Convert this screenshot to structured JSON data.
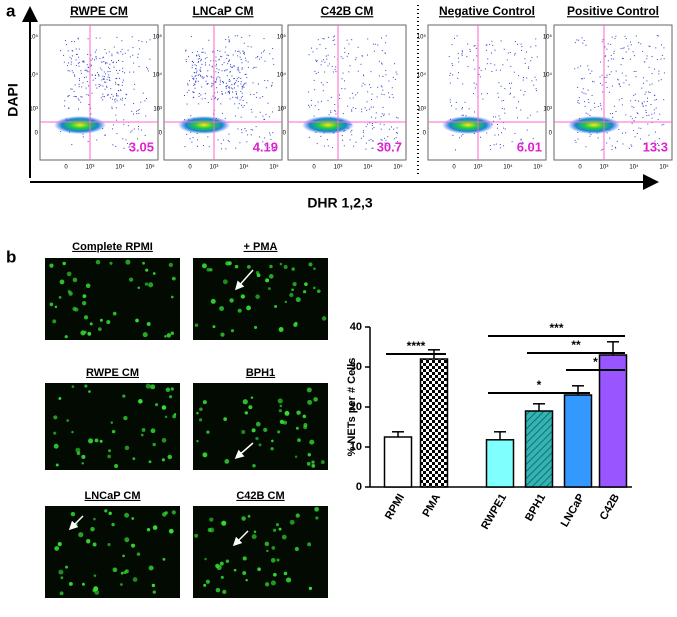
{
  "panel_a": {
    "label": "a",
    "y_label": "DAPI",
    "x_label": "DHR 1,2,3",
    "y_ticks": [
      "10⁵",
      "10⁴",
      "10³",
      "0"
    ],
    "x_ticks": [
      "0",
      "10³",
      "10⁴",
      "10⁵"
    ],
    "plots": [
      {
        "title": "RWPE CM",
        "percent": 3.05
      },
      {
        "title": "LNCaP CM",
        "percent": 4.19
      },
      {
        "title": "C42B CM",
        "percent": 30.7
      },
      {
        "title": "Negative Control",
        "percent": 6.01
      },
      {
        "title": "Positive Control",
        "percent": 13.3
      }
    ]
  },
  "panel_b": {
    "label": "b",
    "images": [
      "Complete RPMI",
      "+ PMA",
      "RWPE CM",
      "BPH1",
      "LNCaP CM",
      "C42B CM"
    ]
  },
  "chart_data": {
    "type": "bar",
    "y_label": "% NETs per # Cells",
    "categories": [
      "RPMI",
      "PMA",
      "RWPE1",
      "BPH1",
      "LNCaP",
      "C42B"
    ],
    "values": [
      12.5,
      32,
      11.8,
      19,
      23,
      33
    ],
    "errors": [
      1.3,
      2.3,
      2,
      1.8,
      2.3,
      3.3
    ],
    "colors": [
      "#ffffff",
      "#000000",
      "#80ffff",
      "#33b3b3",
      "#3399ff",
      "#9955ff"
    ],
    "patterns": [
      null,
      "checker",
      null,
      "hatch",
      null,
      null
    ],
    "ylim": [
      0,
      40
    ],
    "yticks": [
      0,
      10,
      20,
      30,
      40
    ],
    "annotations": [
      "****",
      "*",
      "***",
      "**",
      "*"
    ]
  }
}
